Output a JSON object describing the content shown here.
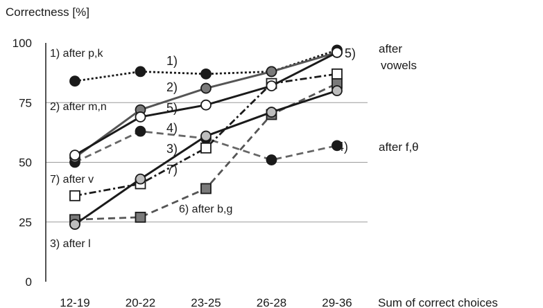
{
  "chart_data": {
    "type": "line",
    "ylabel": "Correctness [%]",
    "xlabel": "Sum of correct choices",
    "categories": [
      "12-19",
      "20-22",
      "23-25",
      "26-28",
      "29-36"
    ],
    "ylim": [
      0,
      100
    ],
    "yticks": [
      0,
      25,
      50,
      75,
      100
    ],
    "grid": "horizontal at 25, 50, 75",
    "series": [
      {
        "id": "1",
        "name": "after p,k",
        "values": [
          84,
          88,
          87,
          88,
          97
        ],
        "color": "#1a1a1a",
        "line": "dotted",
        "marker": "circle-black"
      },
      {
        "id": "2",
        "name": "after m,n",
        "values": [
          52,
          72,
          81,
          88,
          96
        ],
        "color": "#555555",
        "line": "solid",
        "marker": "circle-gray"
      },
      {
        "id": "3",
        "name": "after l",
        "values": [
          24,
          43,
          61,
          71,
          80
        ],
        "color": "#1a1a1a",
        "line": "solid",
        "marker": "circle-lightgray"
      },
      {
        "id": "4",
        "name": "after f,θ",
        "values": [
          50,
          63,
          60,
          51,
          57
        ],
        "color": "#666666",
        "line": "dashed",
        "marker": "circle-black"
      },
      {
        "id": "5",
        "name": "after vowels",
        "values": [
          53,
          69,
          74,
          82,
          96
        ],
        "color": "#1a1a1a",
        "line": "solid",
        "marker": "circle-white"
      },
      {
        "id": "6",
        "name": "after b,g",
        "values": [
          26,
          27,
          39,
          70,
          83
        ],
        "color": "#555555",
        "line": "dashed",
        "marker": "square-gray"
      },
      {
        "id": "7",
        "name": "after v",
        "values": [
          36,
          41,
          56,
          83,
          87
        ],
        "color": "#1a1a1a",
        "line": "dashdot",
        "marker": "square-white"
      }
    ],
    "annotations": [
      {
        "series": "1",
        "text": "1)  after p,k"
      },
      {
        "series": "2",
        "text": "2)  after m,n"
      },
      {
        "series": "3",
        "text": "3)  after l"
      },
      {
        "series": "4",
        "text": "4)"
      },
      {
        "series": "4",
        "text": "after f,θ"
      },
      {
        "series": "5",
        "text": "5)"
      },
      {
        "series": "5",
        "text": "after"
      },
      {
        "series": "5",
        "text": "vowels"
      },
      {
        "series": "6",
        "text": "6)  after b,g"
      },
      {
        "series": "7",
        "text": "7)  after v"
      },
      {
        "series": "1",
        "text": "1)"
      },
      {
        "series": "2",
        "text": "2)"
      },
      {
        "series": "5",
        "text": "5)"
      },
      {
        "series": "4",
        "text": "4)"
      },
      {
        "series": "3",
        "text": "3)"
      },
      {
        "series": "7",
        "text": "7)"
      }
    ]
  }
}
